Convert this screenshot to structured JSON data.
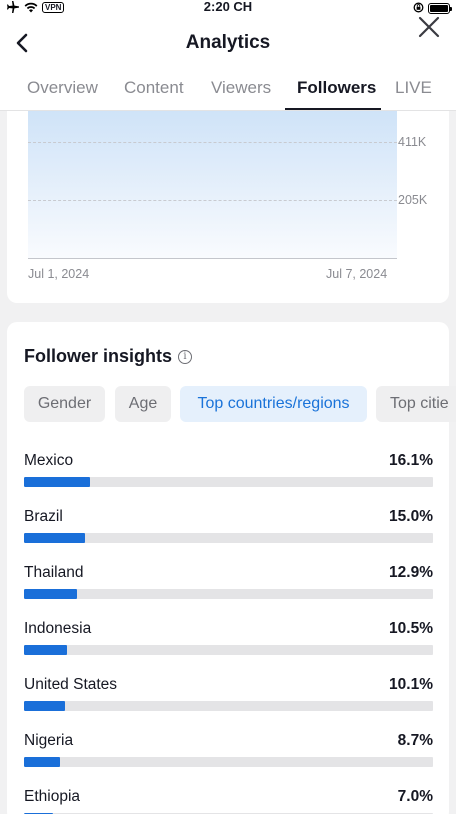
{
  "status_bar": {
    "time": "2:20 CH",
    "vpn": "VPN"
  },
  "header": {
    "title": "Analytics"
  },
  "tabs": [
    {
      "label": "Overview",
      "active": false
    },
    {
      "label": "Content",
      "active": false
    },
    {
      "label": "Viewers",
      "active": false
    },
    {
      "label": "Followers",
      "active": true
    },
    {
      "label": "LIVE",
      "active": false
    }
  ],
  "chart": {
    "y_ticks": [
      "411K",
      "205K"
    ],
    "x_ticks": [
      "Jul 1, 2024",
      "Jul 7, 2024"
    ]
  },
  "chart_data": {
    "type": "area",
    "x": [
      "Jul 1, 2024",
      "Jul 7, 2024"
    ],
    "y_tick_labels": [
      "411K",
      "205K"
    ]
  },
  "insights": {
    "title": "Follower insights",
    "chips": [
      "Gender",
      "Age",
      "Top countries/regions",
      "Top citie"
    ],
    "active_chip": "Top countries/regions",
    "countries": [
      {
        "name": "Mexico",
        "percent": "16.1%",
        "value": 16.1
      },
      {
        "name": "Brazil",
        "percent": "15.0%",
        "value": 15.0
      },
      {
        "name": "Thailand",
        "percent": "12.9%",
        "value": 12.9
      },
      {
        "name": "Indonesia",
        "percent": "10.5%",
        "value": 10.5
      },
      {
        "name": "United States",
        "percent": "10.1%",
        "value": 10.1
      },
      {
        "name": "Nigeria",
        "percent": "8.7%",
        "value": 8.7
      },
      {
        "name": "Ethiopia",
        "percent": "7.0%",
        "value": 7.0
      }
    ]
  },
  "colors": {
    "accent": "#1a6fd9",
    "active_chip_bg": "#e5f0fc"
  }
}
